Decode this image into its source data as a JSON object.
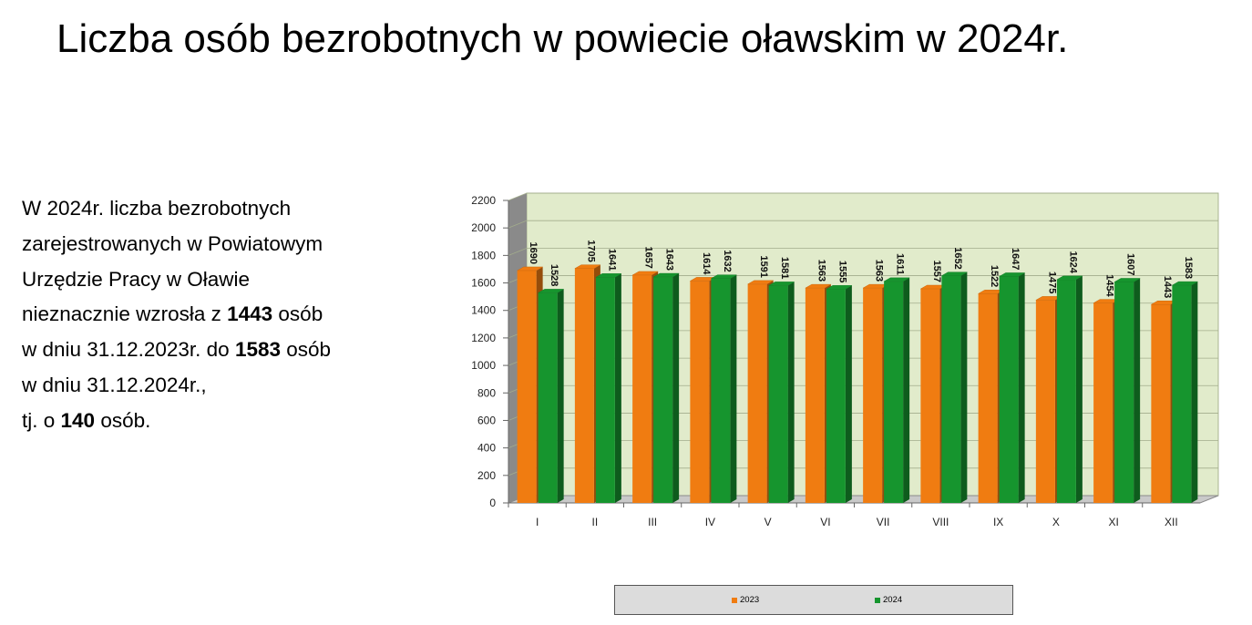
{
  "title": "Liczba osób bezrobotnych w powiecie oławskim w 2024r.",
  "summary": {
    "line1": "W 2024r. liczba bezrobotnych",
    "line2": "zarejestrowanych w Powiatowym",
    "line3": "Urzędzie Pracy w Oławie",
    "line4_a": "nieznacznie wzrosła z ",
    "line4_b": "1443",
    "line4_c": " osób",
    "line5_a": "w dniu 31.12.2023r. do ",
    "line5_b": "1583",
    "line5_c": " osób",
    "line6": "w dniu 31.12.2024r.,",
    "line7_a": "tj. o ",
    "line7_b": "140",
    "line7_c": " osób."
  },
  "chart_data": {
    "type": "bar",
    "style": "3d-clustered-column",
    "categories": [
      "I",
      "II",
      "III",
      "IV",
      "V",
      "VI",
      "VII",
      "VIII",
      "IX",
      "X",
      "XI",
      "XII"
    ],
    "series": [
      {
        "name": "2023",
        "color": "#f07c11",
        "values": [
          1690,
          1705,
          1657,
          1614,
          1591,
          1563,
          1563,
          1557,
          1522,
          1475,
          1454,
          1443
        ]
      },
      {
        "name": "2024",
        "color": "#16952e",
        "values": [
          1528,
          1641,
          1643,
          1632,
          1581,
          1555,
          1611,
          1652,
          1647,
          1624,
          1607,
          1583
        ]
      }
    ],
    "y_ticks": [
      "0",
      "200",
      "400",
      "600",
      "800",
      "1000",
      "1200",
      "1400",
      "1600",
      "1800",
      "2000",
      "2200"
    ],
    "ylim": [
      0,
      2200
    ],
    "grid": true,
    "wall_color": "#e1ebcb",
    "data_labels": true,
    "legend_position": "bottom"
  }
}
